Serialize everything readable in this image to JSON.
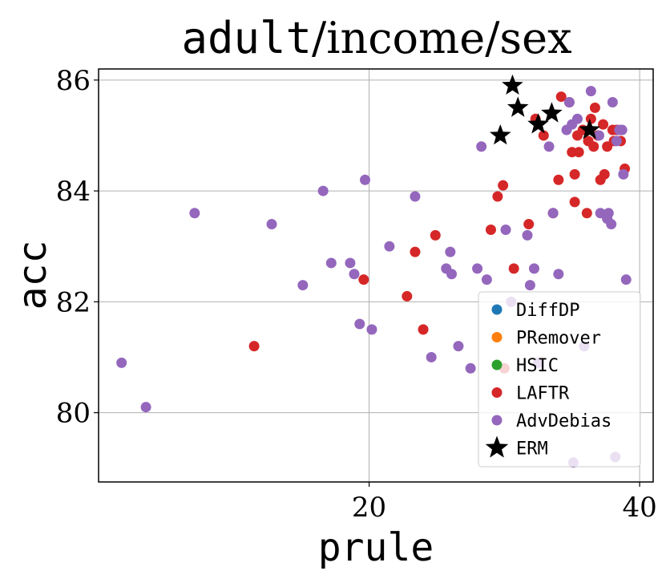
{
  "chart_data": {
    "type": "scatter",
    "title": {
      "part1": "adult",
      "sep1": "/",
      "part2": "income",
      "sep2": "/",
      "part3": "sex"
    },
    "xlabel": "prule",
    "ylabel": "acc",
    "xlim": [
      0.0,
      41.0
    ],
    "ylim": [
      78.75,
      86.2
    ],
    "xticks": [
      20,
      40
    ],
    "yticks": [
      80,
      82,
      84,
      86
    ],
    "grid": true,
    "legend_position": "lower-right",
    "series": [
      {
        "name": "DiffDP",
        "color": "#1f77b4",
        "marker": "circle",
        "points": []
      },
      {
        "name": "PRemover",
        "color": "#ff7f0e",
        "marker": "circle",
        "points": []
      },
      {
        "name": "HSIC",
        "color": "#2ca02c",
        "marker": "circle",
        "points": []
      },
      {
        "name": "LAFTR",
        "color": "#d62728",
        "marker": "circle",
        "points": [
          [
            11.5,
            81.2
          ],
          [
            19.6,
            82.4
          ],
          [
            22.8,
            82.1
          ],
          [
            23.4,
            82.9
          ],
          [
            24.0,
            81.5
          ],
          [
            24.9,
            83.2
          ],
          [
            29.0,
            83.3
          ],
          [
            29.5,
            83.9
          ],
          [
            29.9,
            84.1
          ],
          [
            30.0,
            80.8
          ],
          [
            30.7,
            82.6
          ],
          [
            31.8,
            83.4
          ],
          [
            33.6,
            83.6
          ],
          [
            34.0,
            84.2
          ],
          [
            35.2,
            83.8
          ],
          [
            35.2,
            84.3
          ],
          [
            36.1,
            83.6
          ],
          [
            37.1,
            84.2
          ],
          [
            37.4,
            84.3
          ],
          [
            38.9,
            84.4
          ],
          [
            35.0,
            84.7
          ],
          [
            35.5,
            84.7
          ],
          [
            34.8,
            85.6
          ],
          [
            35.4,
            85.0
          ],
          [
            35.8,
            85.1
          ],
          [
            36.2,
            84.9
          ],
          [
            36.6,
            84.8
          ],
          [
            36.9,
            85.0
          ],
          [
            37.3,
            85.2
          ],
          [
            37.6,
            84.8
          ],
          [
            38.1,
            84.9
          ],
          [
            38.6,
            84.9
          ],
          [
            38.3,
            85.1
          ],
          [
            36.4,
            85.3
          ],
          [
            36.7,
            85.5
          ],
          [
            34.2,
            85.7
          ],
          [
            32.3,
            85.3
          ],
          [
            32.9,
            85.0
          ],
          [
            38.0,
            85.1
          ]
        ]
      },
      {
        "name": "AdvDebias",
        "color": "#9467bd",
        "marker": "circle",
        "points": [
          [
            1.7,
            80.9
          ],
          [
            3.5,
            80.1
          ],
          [
            7.1,
            83.6
          ],
          [
            12.8,
            83.4
          ],
          [
            15.1,
            82.3
          ],
          [
            16.6,
            84.0
          ],
          [
            17.2,
            82.7
          ],
          [
            18.6,
            82.7
          ],
          [
            18.9,
            82.5
          ],
          [
            19.3,
            81.6
          ],
          [
            19.7,
            84.2
          ],
          [
            20.2,
            81.5
          ],
          [
            21.5,
            83.0
          ],
          [
            23.4,
            83.9
          ],
          [
            24.6,
            81.0
          ],
          [
            25.7,
            82.6
          ],
          [
            26.0,
            82.9
          ],
          [
            26.1,
            82.5
          ],
          [
            26.6,
            81.2
          ],
          [
            27.5,
            80.8
          ],
          [
            28.0,
            82.6
          ],
          [
            28.3,
            84.8
          ],
          [
            28.7,
            82.4
          ],
          [
            30.1,
            83.3
          ],
          [
            30.5,
            82.0
          ],
          [
            31.7,
            83.2
          ],
          [
            31.9,
            82.3
          ],
          [
            32.2,
            82.6
          ],
          [
            32.5,
            80.9
          ],
          [
            33.3,
            84.8
          ],
          [
            33.6,
            83.6
          ],
          [
            34.0,
            82.5
          ],
          [
            34.6,
            85.1
          ],
          [
            34.8,
            85.6
          ],
          [
            35.0,
            85.2
          ],
          [
            35.4,
            85.3
          ],
          [
            35.1,
            79.1
          ],
          [
            35.9,
            81.2
          ],
          [
            36.4,
            85.8
          ],
          [
            37.0,
            85.0
          ],
          [
            37.1,
            83.6
          ],
          [
            37.6,
            83.5
          ],
          [
            37.7,
            83.6
          ],
          [
            37.9,
            83.4
          ],
          [
            38.0,
            85.6
          ],
          [
            38.2,
            79.2
          ],
          [
            38.3,
            84.9
          ],
          [
            38.5,
            85.1
          ],
          [
            38.7,
            85.1
          ],
          [
            38.8,
            84.3
          ],
          [
            39.0,
            82.4
          ]
        ]
      },
      {
        "name": "ERM",
        "color": "#000000",
        "marker": "star",
        "points": [
          [
            29.7,
            85.0
          ],
          [
            30.6,
            85.9
          ],
          [
            31.0,
            85.5
          ],
          [
            32.5,
            85.2
          ],
          [
            33.5,
            85.4
          ],
          [
            36.3,
            85.1
          ]
        ]
      }
    ]
  }
}
